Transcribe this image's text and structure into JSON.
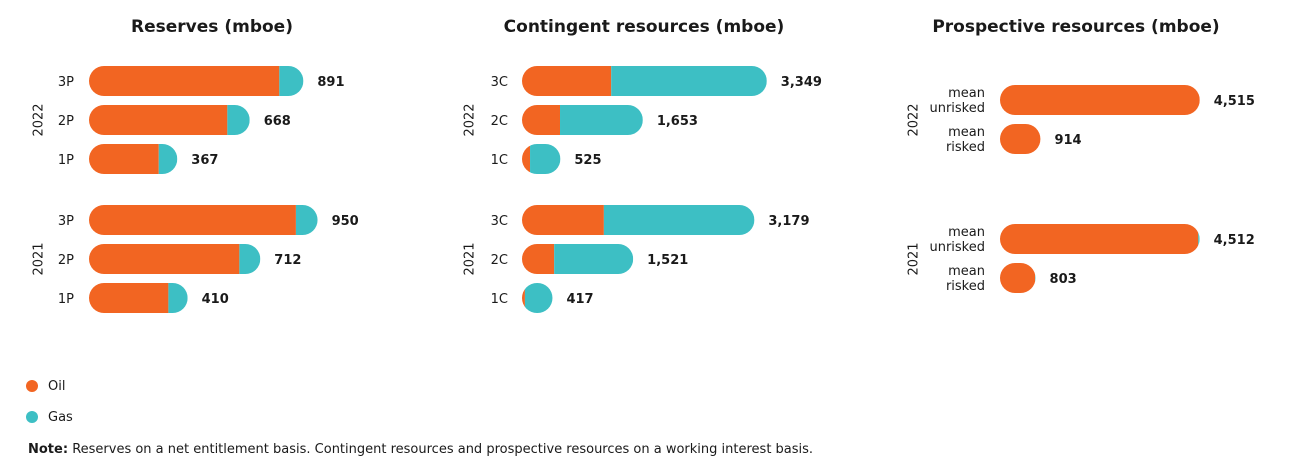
{
  "colors": {
    "oil": "#f26522",
    "gas": "#3dbfc4"
  },
  "legend": {
    "oil_label": "Oil",
    "gas_label": "Gas"
  },
  "note": {
    "label": "Note:",
    "text": "Reserves on a net entitlement basis. Contingent resources and prospective resources on a working interest basis."
  },
  "chart_data": [
    {
      "type": "bar",
      "orientation": "horizontal",
      "stacked": true,
      "title": "Reserves (mboe)",
      "groups": [
        {
          "year": "2022",
          "bars": [
            {
              "category": "3P",
              "label": "891",
              "total": 891,
              "oil": 791,
              "gas": 100
            },
            {
              "category": "2P",
              "label": "668",
              "total": 668,
              "oil": 575,
              "gas": 93
            },
            {
              "category": "1P",
              "label": "367",
              "total": 367,
              "oil": 290,
              "gas": 77
            }
          ]
        },
        {
          "year": "2021",
          "bars": [
            {
              "category": "3P",
              "label": "950",
              "total": 950,
              "oil": 860,
              "gas": 90
            },
            {
              "category": "2P",
              "label": "712",
              "total": 712,
              "oil": 625,
              "gas": 87
            },
            {
              "category": "1P",
              "label": "410",
              "total": 410,
              "oil": 330,
              "gas": 80
            }
          ]
        }
      ]
    },
    {
      "type": "bar",
      "orientation": "horizontal",
      "stacked": true,
      "title": "Contingent resources (mboe)",
      "groups": [
        {
          "year": "2022",
          "bars": [
            {
              "category": "3C",
              "label": "3,349",
              "total": 3349,
              "oil": 1220,
              "gas": 2129
            },
            {
              "category": "2C",
              "label": "1,653",
              "total": 1653,
              "oil": 520,
              "gas": 1133
            },
            {
              "category": "1C",
              "label": "525",
              "total": 525,
              "oil": 110,
              "gas": 415
            }
          ]
        },
        {
          "year": "2021",
          "bars": [
            {
              "category": "3C",
              "label": "3,179",
              "total": 3179,
              "oil": 1120,
              "gas": 2059
            },
            {
              "category": "2C",
              "label": "1,521",
              "total": 1521,
              "oil": 440,
              "gas": 1081
            },
            {
              "category": "1C",
              "label": "417",
              "total": 417,
              "oil": 40,
              "gas": 377
            }
          ]
        }
      ]
    },
    {
      "type": "bar",
      "orientation": "horizontal",
      "stacked": true,
      "title": "Prospective resources (mboe)",
      "groups": [
        {
          "year": "2022",
          "bars": [
            {
              "category": "mean unrisked",
              "label": "4,515",
              "total": 4515,
              "oil": 4515,
              "gas": 0
            },
            {
              "category": "mean risked",
              "label": "914",
              "total": 914,
              "oil": 914,
              "gas": 0
            }
          ]
        },
        {
          "year": "2021",
          "bars": [
            {
              "category": "mean unrisked",
              "label": "4,512",
              "total": 4512,
              "oil": 4480,
              "gas": 32
            },
            {
              "category": "mean risked",
              "label": "803",
              "total": 803,
              "oil": 793,
              "gas": 10
            }
          ]
        }
      ]
    }
  ]
}
